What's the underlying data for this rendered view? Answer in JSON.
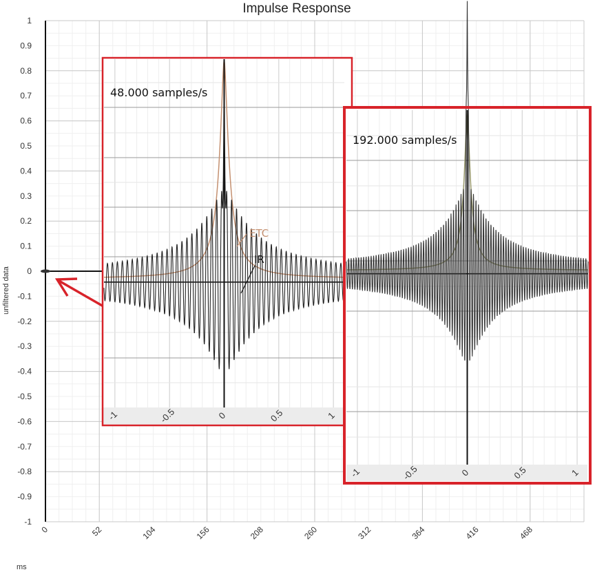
{
  "chart_data": [
    {
      "type": "line",
      "title": "Impulse Response",
      "ylabel": "unfiltered data",
      "xlabel": "ms",
      "ylim": [
        -1,
        1
      ],
      "xlim": [
        0,
        520
      ],
      "yticks": [
        "1",
        "0.9",
        "0.8",
        "0.7",
        "0.6",
        "0.5",
        "0.4",
        "0.3",
        "0.2",
        "0.1",
        "0",
        "-0.1",
        "-0.2",
        "-0.3",
        "-0.4",
        "-0.5",
        "-0.6",
        "-0.7",
        "-0.8",
        "-0.9",
        "-1"
      ],
      "xticks": [
        "0",
        "52",
        "104",
        "156",
        "208",
        "260",
        "312",
        "364",
        "416",
        "468"
      ],
      "grid": true,
      "series": [
        {
          "values_description": "impulse at t=0",
          "x": [
            0,
            0,
            0,
            520
          ],
          "y": [
            0,
            1,
            -1,
            0
          ],
          "color": "#111111"
        }
      ]
    },
    {
      "type": "line",
      "annotation": "48.000 samples/s",
      "xticks": [
        "-1",
        "-0.5",
        "0",
        "0.5",
        "1"
      ],
      "xlim": [
        -1.1,
        1.1
      ],
      "ylim": [
        -0.45,
        0.8
      ],
      "grid": true,
      "series": [
        {
          "name": "ETC",
          "color": "#c49070",
          "kind": "etc",
          "decay": 0.05
        },
        {
          "name": "IR",
          "color": "#222222",
          "kind": "ir",
          "freq": 22,
          "decay": 0.28,
          "peak": 0.8
        }
      ]
    },
    {
      "type": "line",
      "annotation": "192.000 samples/s",
      "xticks": [
        "-1",
        "-0.5",
        "0",
        "0.5",
        "1"
      ],
      "xlim": [
        -1.1,
        1.1
      ],
      "ylim": [
        -0.7,
        0.6
      ],
      "grid": true,
      "series": [
        {
          "color": "#9b9b6e",
          "kind": "etc",
          "decay": 0.035
        },
        {
          "color": "#333333",
          "kind": "ir",
          "freq": 44,
          "decay": 0.22,
          "peak": 1
        }
      ]
    }
  ],
  "annotations": {
    "etc_label": "ETC",
    "ir_label": "IR",
    "arrow_color": "#d8232a",
    "box_color": "#d8232a"
  }
}
